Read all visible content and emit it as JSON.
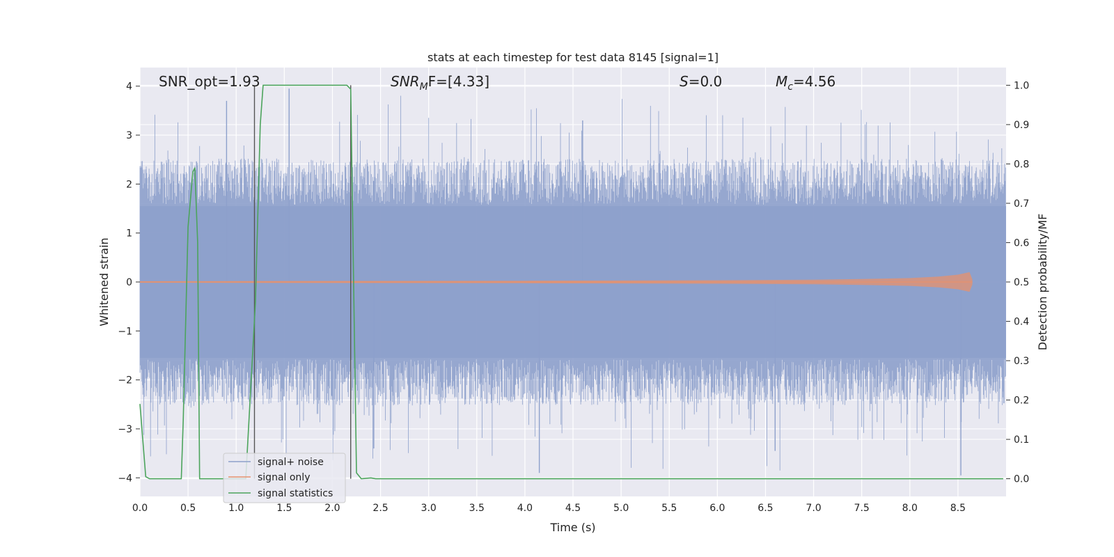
{
  "chart_data": {
    "type": "line",
    "title": "stats at each timestep for test data 8145 [signal=1]",
    "xlabel": "Time (s)",
    "ylabel_left": "Whitened strain",
    "ylabel_right": "Detection probability/MF",
    "xlim": [
      0.0,
      9.0
    ],
    "ylim_left": [
      -4.38,
      4.38
    ],
    "ylim_right": [
      -0.045,
      1.045
    ],
    "x_ticks": [
      "0.0",
      "0.5",
      "1.0",
      "1.5",
      "2.0",
      "2.5",
      "3.0",
      "3.5",
      "4.0",
      "4.5",
      "5.0",
      "5.5",
      "6.0",
      "6.5",
      "7.0",
      "7.5",
      "8.0",
      "8.5"
    ],
    "y_left_ticks": [
      "4",
      "3",
      "2",
      "1",
      "0",
      "−1",
      "−2",
      "−3",
      "−4"
    ],
    "y_right_ticks": [
      "1.0",
      "0.9",
      "0.8",
      "0.7",
      "0.6",
      "0.5",
      "0.4",
      "0.3",
      "0.2",
      "0.1",
      "0.0"
    ],
    "grid": true,
    "legend_position": "lower-left",
    "annotations": {
      "snr_opt": "SNR_opt=1.93",
      "snr_mf_main": "SNR",
      "snr_mf_sub": "M",
      "snr_mf_tail": "F=[4.33]",
      "s_main": "S",
      "s_tail": "=0.0",
      "mc_main": "M",
      "mc_sub": "c",
      "mc_tail": "=4.56"
    },
    "vertical_markers_s": [
      1.19,
      2.19
    ],
    "series": [
      {
        "name": "signal+ noise",
        "axis": "left",
        "color": "#8da0cb",
        "style": "dense noise strain",
        "typical_envelope": [
          -2.1,
          2.1
        ],
        "peak_values": [
          [
            0.9,
            3.7
          ],
          [
            1.55,
            3.95
          ],
          [
            4.6,
            3.3
          ],
          [
            4.15,
            -3.9
          ],
          [
            8.53,
            -3.95
          ],
          [
            2.43,
            -3.4
          ],
          [
            6.6,
            -3.45
          ]
        ]
      },
      {
        "name": "signal only",
        "axis": "left",
        "color": "#e5926e",
        "style": "chirp, amplitude rising to merger",
        "x": [
          0.0,
          4.0,
          6.0,
          7.0,
          7.5,
          8.0,
          8.3,
          8.5,
          8.62,
          8.65
        ],
        "amplitude": [
          0.015,
          0.025,
          0.035,
          0.045,
          0.06,
          0.08,
          0.11,
          0.15,
          0.2,
          0.05
        ]
      },
      {
        "name": "signal statistics",
        "axis": "right",
        "color": "#4ca45c",
        "x": [
          0.0,
          0.06,
          0.1,
          0.15,
          0.3,
          0.43,
          0.45,
          0.5,
          0.55,
          0.57,
          0.6,
          0.62,
          0.66,
          0.8,
          1.0,
          1.1,
          1.2,
          1.25,
          1.28,
          2.1,
          2.15,
          2.19,
          2.25,
          2.3,
          2.4,
          2.45,
          2.5,
          2.6,
          8.97
        ],
        "y": [
          0.19,
          0.005,
          0.0,
          0.0,
          0.0,
          0.0,
          0.15,
          0.64,
          0.78,
          0.79,
          0.6,
          0.0,
          0.0,
          0.0,
          0.0,
          0.0,
          0.45,
          0.9,
          1.0,
          1.0,
          1.0,
          0.99,
          0.015,
          0.0,
          0.002,
          0.0,
          0.0,
          0.0,
          0.0
        ]
      }
    ]
  }
}
